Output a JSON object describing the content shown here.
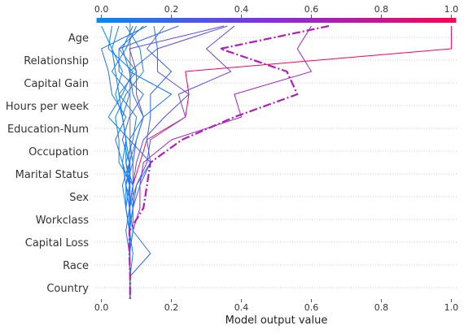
{
  "chart_data": {
    "type": "line",
    "subtype": "decision_plot",
    "title": "",
    "xlabel": "Model output value",
    "xlim": [
      -0.02,
      1.02
    ],
    "x_ticks": [
      0.0,
      0.2,
      0.4,
      0.6,
      0.8,
      1.0
    ],
    "x_tick_labels": [
      "0.0",
      "0.2",
      "0.4",
      "0.6",
      "0.8",
      "1.0"
    ],
    "base_value": 0.082,
    "features": [
      "Age",
      "Relationship",
      "Capital Gain",
      "Hours per week",
      "Education-Num",
      "Occupation",
      "Marital Status",
      "Sex",
      "Workclass",
      "Capital Loss",
      "Race",
      "Country"
    ],
    "grid": "dotted horizontal lines per feature row",
    "colorbar": {
      "position": "top",
      "range": [
        0.0,
        1.0
      ],
      "colors": [
        "#008bfb",
        "#8a2be2",
        "#ff0052"
      ],
      "tick_labels": [
        "0.0",
        "0.2",
        "0.4",
        "0.6",
        "0.8",
        "1.0"
      ]
    },
    "line_values_order": "top (after Age) to bottom (after Country)",
    "highlighted_index": 0,
    "series": [
      {
        "values": [
          0.65,
          0.34,
          0.53,
          0.56,
          0.38,
          0.23,
          0.14,
          0.13,
          0.12,
          0.08,
          0.08,
          0.082
        ],
        "highlighted": true
      },
      {
        "values": [
          1.0,
          1.0,
          0.24,
          0.25,
          0.24,
          0.13,
          0.11,
          0.09,
          0.08,
          0.08,
          0.08,
          0.082
        ]
      },
      {
        "values": [
          0.6,
          0.56,
          0.6,
          0.38,
          0.4,
          0.2,
          0.12,
          0.11,
          0.11,
          0.09,
          0.08,
          0.082
        ]
      },
      {
        "values": [
          0.38,
          0.3,
          0.37,
          0.22,
          0.24,
          0.14,
          0.13,
          0.1,
          0.09,
          0.08,
          0.08,
          0.082
        ]
      },
      {
        "values": [
          0.36,
          0.16,
          0.16,
          0.25,
          0.18,
          0.12,
          0.1,
          0.09,
          0.08,
          0.08,
          0.08,
          0.082
        ]
      },
      {
        "values": [
          0.35,
          0.08,
          0.1,
          0.1,
          0.12,
          0.1,
          0.09,
          0.09,
          0.08,
          0.08,
          0.08,
          0.082
        ]
      },
      {
        "values": [
          0.18,
          0.13,
          0.2,
          0.14,
          0.14,
          0.13,
          0.14,
          0.11,
          0.09,
          0.09,
          0.14,
          0.082
        ]
      },
      {
        "values": [
          0.22,
          0.05,
          0.05,
          0.12,
          0.08,
          0.06,
          0.08,
          0.07,
          0.08,
          0.08,
          0.08,
          0.082
        ]
      },
      {
        "values": [
          0.15,
          0.16,
          0.08,
          0.09,
          0.12,
          0.08,
          0.14,
          0.1,
          0.08,
          0.08,
          0.08,
          0.082
        ]
      },
      {
        "values": [
          0.09,
          0.06,
          0.08,
          0.2,
          0.12,
          0.1,
          0.08,
          0.08,
          0.08,
          0.08,
          0.08,
          0.082
        ]
      },
      {
        "values": [
          0.05,
          0.03,
          0.04,
          0.05,
          0.06,
          0.07,
          0.06,
          0.07,
          0.09,
          0.08,
          0.08,
          0.082
        ]
      },
      {
        "values": [
          0.13,
          0.0,
          0.02,
          0.03,
          0.07,
          0.04,
          0.06,
          0.08,
          0.07,
          0.08,
          0.08,
          0.082
        ]
      },
      {
        "values": [
          0.07,
          0.11,
          0.12,
          0.07,
          0.04,
          0.05,
          0.05,
          0.09,
          0.09,
          0.08,
          0.09,
          0.082
        ]
      },
      {
        "values": [
          0.03,
          0.02,
          0.09,
          0.06,
          0.02,
          0.08,
          0.09,
          0.07,
          0.07,
          0.08,
          0.08,
          0.082
        ]
      },
      {
        "values": [
          0.0,
          0.03,
          0.06,
          0.04,
          0.06,
          0.07,
          0.07,
          0.09,
          0.08,
          0.09,
          0.08,
          0.082
        ]
      },
      {
        "values": [
          0.1,
          0.07,
          0.03,
          0.08,
          0.06,
          0.07,
          0.08,
          0.06,
          0.07,
          0.08,
          0.08,
          0.082
        ]
      },
      {
        "values": [
          0.12,
          0.05,
          0.1,
          0.05,
          0.1,
          0.09,
          0.07,
          0.08,
          0.08,
          0.07,
          0.08,
          0.082
        ]
      }
    ]
  }
}
